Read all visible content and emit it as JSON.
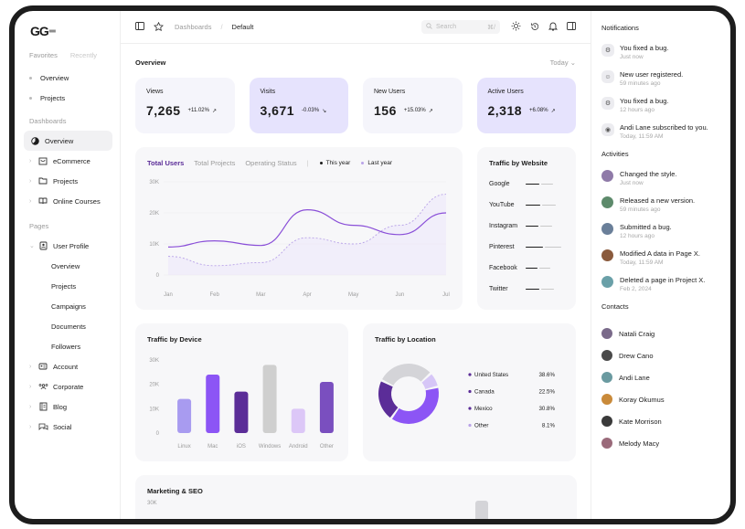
{
  "app": {
    "logo": "GG"
  },
  "sidebar": {
    "tab_favorites": "Favorites",
    "tab_recently": "Recently",
    "favorites": [
      "Overview",
      "Projects"
    ],
    "dashboards_heading": "Dashboards",
    "dashboards": [
      {
        "label": "Overview",
        "active": true
      },
      {
        "label": "eCommerce"
      },
      {
        "label": "Projects"
      },
      {
        "label": "Online Courses"
      }
    ],
    "pages_heading": "Pages",
    "user_profile": "User Profile",
    "user_profile_sub": [
      "Overview",
      "Projects",
      "Campaigns",
      "Documents",
      "Followers"
    ],
    "pages": [
      "Account",
      "Corporate",
      "Blog",
      "Social"
    ]
  },
  "topbar": {
    "breadcrumb_1": "Dashboards",
    "breadcrumb_sep": "/",
    "breadcrumb_2": "Default",
    "search_placeholder": "Search",
    "search_shortcut": "⌘/"
  },
  "overview": {
    "title": "Overview",
    "range": "Today"
  },
  "stats": [
    {
      "label": "Views",
      "value": "7,265",
      "change": "+11.02%",
      "trend": "up"
    },
    {
      "label": "Visits",
      "value": "3,671",
      "change": "-0.03%",
      "trend": "down"
    },
    {
      "label": "New Users",
      "value": "156",
      "change": "+15.03%",
      "trend": "up"
    },
    {
      "label": "Active Users",
      "value": "2,318",
      "change": "+6.08%",
      "trend": "up"
    }
  ],
  "users_chart": {
    "tabs": [
      "Total Users",
      "Total Projects",
      "Operating Status"
    ],
    "legend": [
      "This year",
      "Last year"
    ]
  },
  "traffic_website": {
    "title": "Traffic by Website",
    "sites": [
      "Google",
      "YouTube",
      "Instagram",
      "Pinterest",
      "Facebook",
      "Twitter"
    ]
  },
  "traffic_device": {
    "title": "Traffic by Device"
  },
  "traffic_location": {
    "title": "Traffic by Location",
    "items": [
      {
        "label": "United States",
        "value": "38.6%"
      },
      {
        "label": "Canada",
        "value": "22.5%"
      },
      {
        "label": "Mexico",
        "value": "30.8%"
      },
      {
        "label": "Other",
        "value": "8.1%"
      }
    ]
  },
  "marketing": {
    "title": "Marketing & SEO",
    "ytick": "30K"
  },
  "notifications": {
    "title": "Notifications",
    "items": [
      {
        "text": "You fixed a bug.",
        "time": "Just now",
        "icon": "bug-icon"
      },
      {
        "text": "New user registered.",
        "time": "59 minutes ago",
        "icon": "user-icon"
      },
      {
        "text": "You fixed a bug.",
        "time": "12 hours ago",
        "icon": "bug-icon"
      },
      {
        "text": "Andi Lane subscribed to you.",
        "time": "Today, 11:59 AM",
        "icon": "broadcast-icon"
      }
    ]
  },
  "activities": {
    "title": "Activities",
    "items": [
      {
        "text": "Changed the style.",
        "time": "Just now"
      },
      {
        "text": "Released a new version.",
        "time": "59 minutes ago"
      },
      {
        "text": "Submitted a bug.",
        "time": "12 hours ago"
      },
      {
        "text": "Modified A data in Page X.",
        "time": "Today, 11:59 AM"
      },
      {
        "text": "Deleted a page in Project X.",
        "time": "Feb 2, 2024"
      }
    ]
  },
  "contacts": {
    "title": "Contacts",
    "people": [
      "Natali Craig",
      "Drew Cano",
      "Andi Lane",
      "Koray Okumus",
      "Kate Morrison",
      "Melody Macy"
    ]
  },
  "colors": {
    "accent": "#5b2d98",
    "card_alt": "#e6e3fd",
    "card": "#f5f5fb",
    "panel": "#f7f7f9"
  },
  "chart_data": [
    {
      "type": "line",
      "title": "Total Users",
      "x": [
        "Jan",
        "Feb",
        "Mar",
        "Apr",
        "May",
        "Jun",
        "Jul"
      ],
      "ylim": [
        0,
        30000
      ],
      "yticks": [
        "0",
        "10K",
        "20K",
        "30K"
      ],
      "series": [
        {
          "name": "This year",
          "values": [
            9000,
            11000,
            9500,
            21000,
            16000,
            13000,
            20000
          ]
        },
        {
          "name": "Last year",
          "values": [
            6000,
            3000,
            4000,
            12000,
            10000,
            16000,
            26000
          ]
        }
      ]
    },
    {
      "type": "bar",
      "title": "Traffic by Device",
      "categories": [
        "Linux",
        "Mac",
        "iOS",
        "Windows",
        "Android",
        "Other"
      ],
      "values": [
        14000,
        24000,
        17000,
        28000,
        10000,
        21000
      ],
      "ylim": [
        0,
        30000
      ],
      "yticks": [
        "0",
        "10K",
        "20K",
        "30K"
      ]
    },
    {
      "type": "pie",
      "title": "Traffic by Location",
      "categories": [
        "United States",
        "Canada",
        "Mexico",
        "Other"
      ],
      "values": [
        38.6,
        22.5,
        30.8,
        8.1
      ]
    },
    {
      "type": "bar",
      "title": "Traffic by Website",
      "categories": [
        "Google",
        "YouTube",
        "Instagram",
        "Pinterest",
        "Facebook",
        "Twitter"
      ],
      "values": [
        0.45,
        0.6,
        0.4,
        0.85,
        0.3,
        0.5
      ]
    }
  ]
}
